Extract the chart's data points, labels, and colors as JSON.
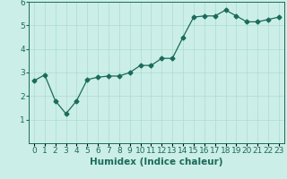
{
  "x": [
    0,
    1,
    2,
    3,
    4,
    5,
    6,
    7,
    8,
    9,
    10,
    11,
    12,
    13,
    14,
    15,
    16,
    17,
    18,
    19,
    20,
    21,
    22,
    23
  ],
  "y": [
    2.65,
    2.9,
    1.8,
    1.25,
    1.8,
    2.7,
    2.8,
    2.85,
    2.85,
    3.0,
    3.3,
    3.3,
    3.6,
    3.6,
    4.5,
    5.35,
    5.4,
    5.4,
    5.65,
    5.4,
    5.15,
    5.15,
    5.25,
    5.35
  ],
  "line_color": "#1a6b5a",
  "marker": "D",
  "markersize": 2.5,
  "linewidth": 0.9,
  "xlabel": "Humidex (Indice chaleur)",
  "bg_color": "#cceee8",
  "grid_color": "#aaddcc",
  "xlim": [
    -0.5,
    23.5
  ],
  "ylim": [
    0,
    6
  ],
  "yticks": [
    1,
    2,
    3,
    4,
    5,
    6
  ],
  "xtick_labels": [
    "0",
    "1",
    "2",
    "3",
    "4",
    "5",
    "6",
    "7",
    "8",
    "9",
    "10",
    "11",
    "12",
    "13",
    "14",
    "15",
    "16",
    "17",
    "18",
    "19",
    "20",
    "21",
    "22",
    "23"
  ],
  "xlabel_fontsize": 7.5,
  "tick_fontsize": 6.5
}
